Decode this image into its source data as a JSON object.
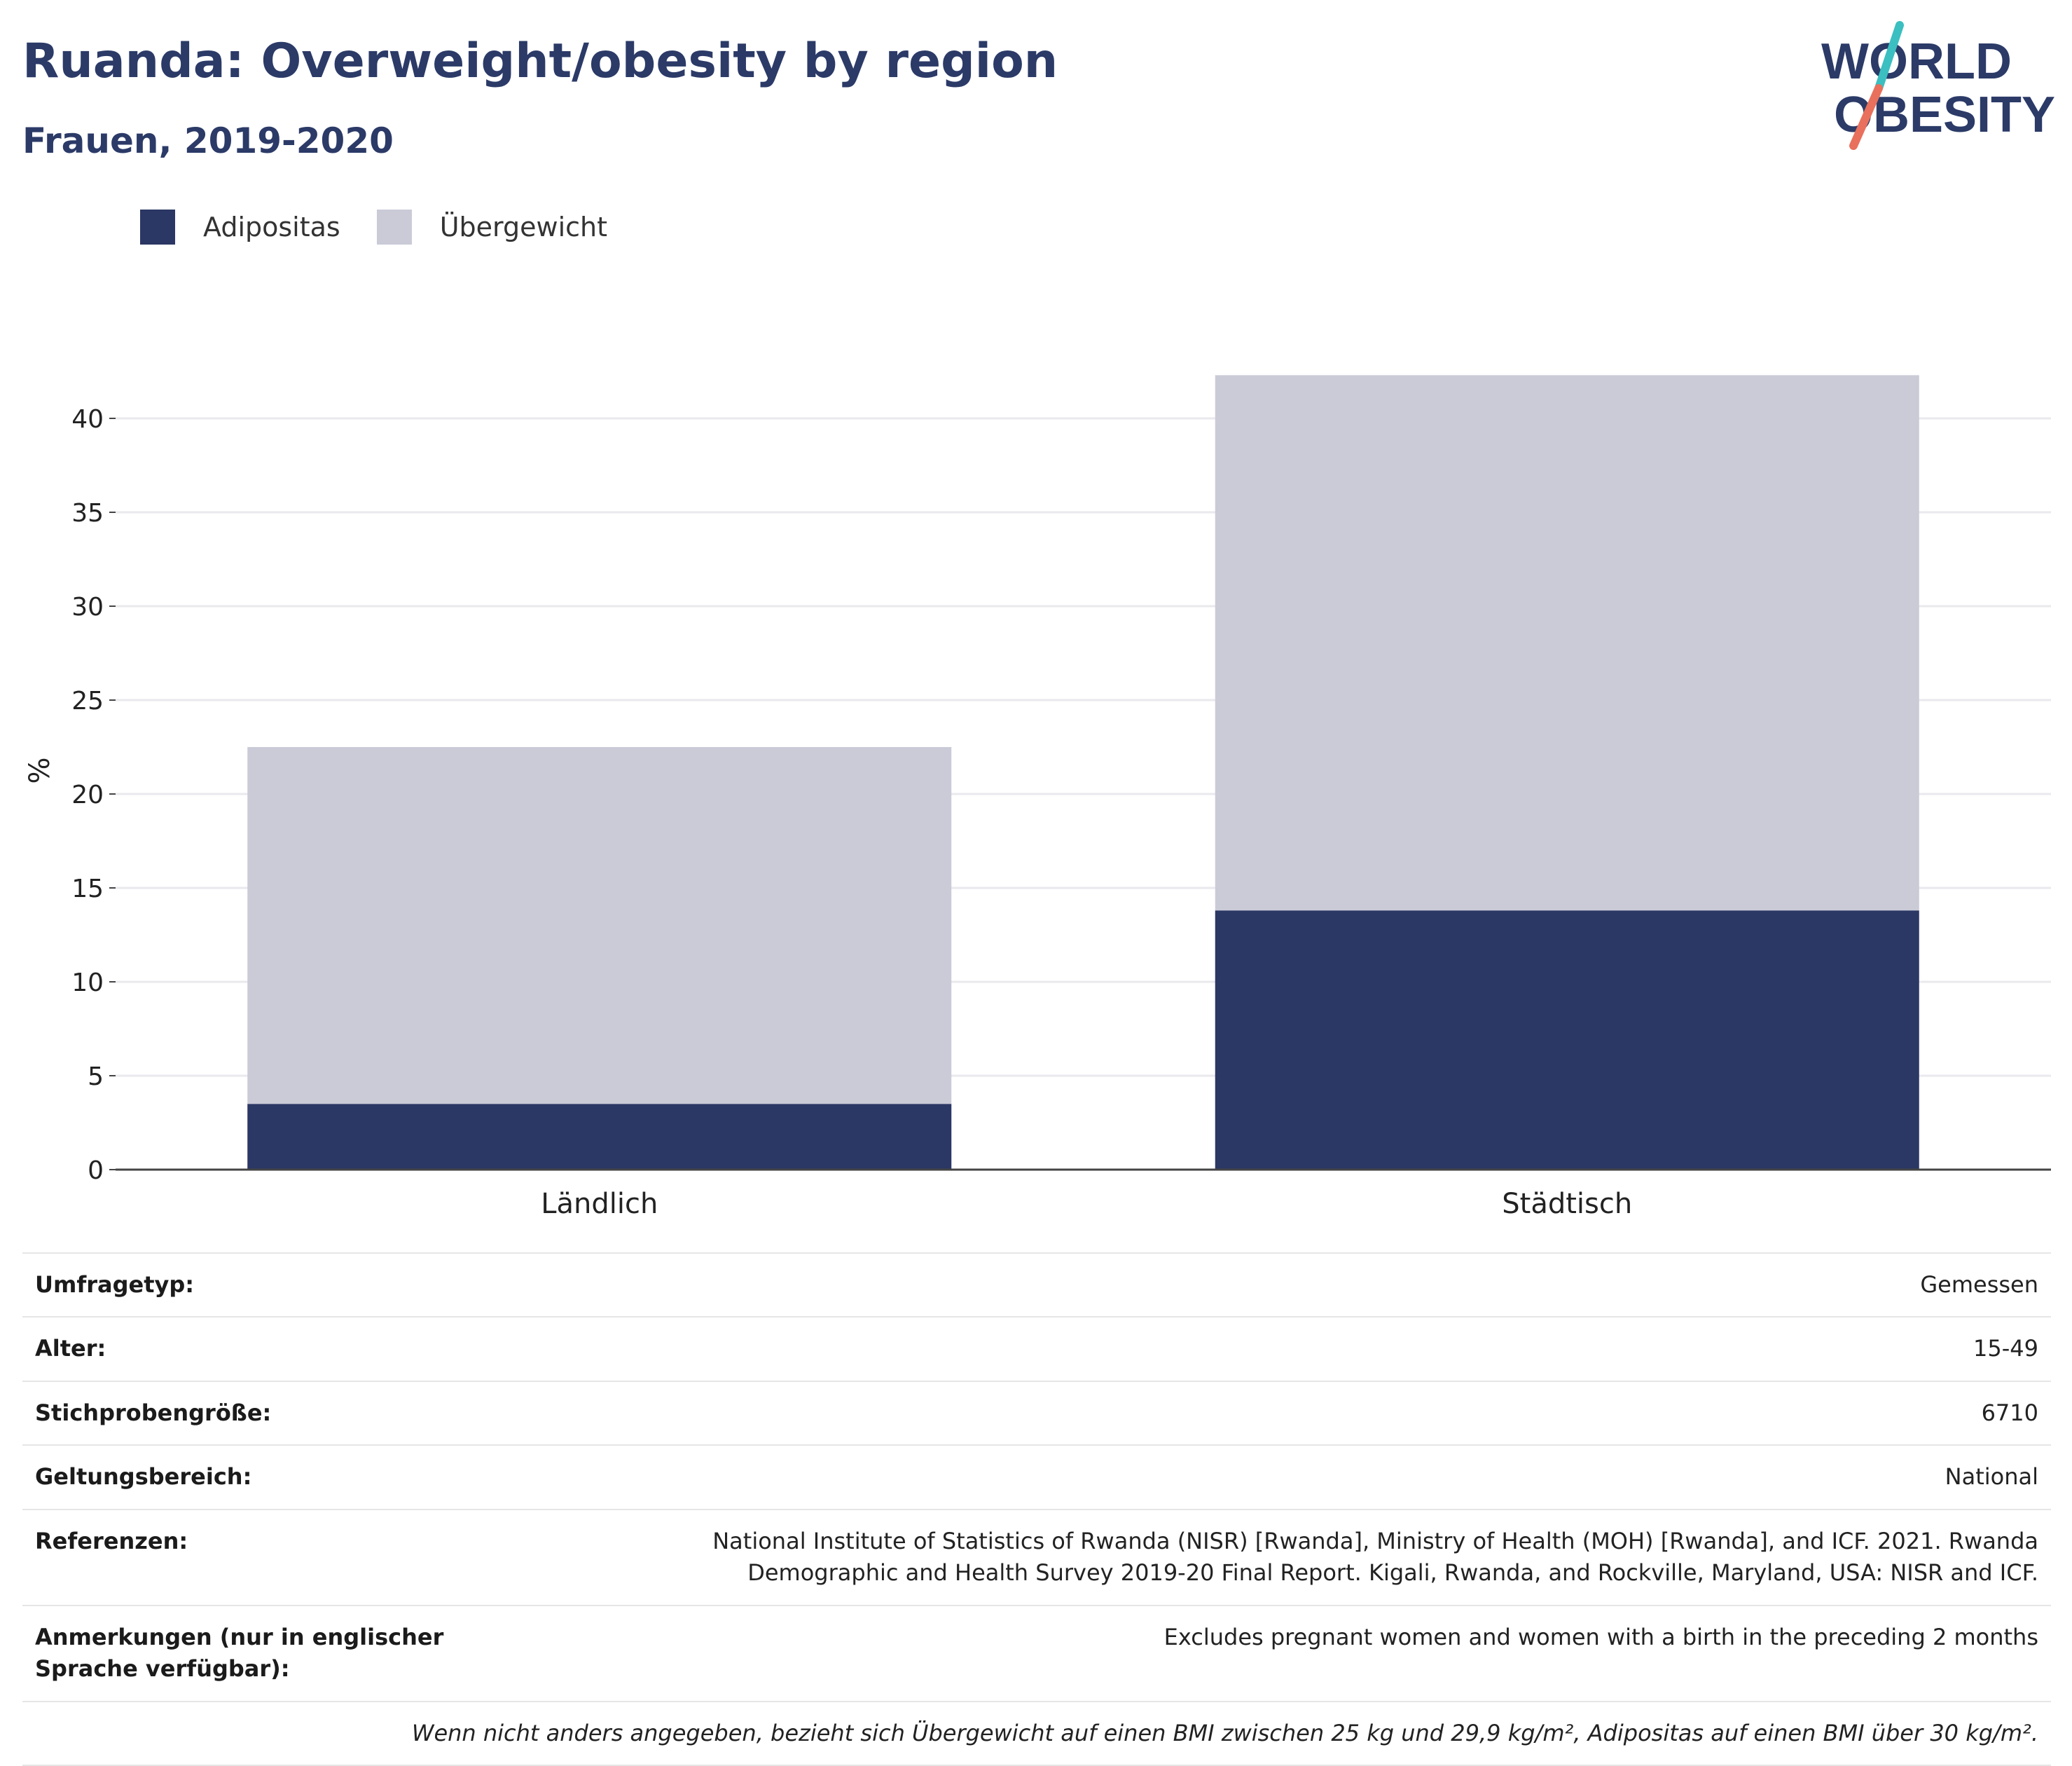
{
  "header": {
    "title": "Ruanda: Overweight/obesity by region",
    "subtitle": "Frauen, 2019-2020"
  },
  "logo": {
    "line1": "WORLD",
    "line2": "OBESITY",
    "colors": {
      "text": "#2b3a67",
      "slash_top": "#3bbfc0",
      "slash_bottom": "#e8705c"
    }
  },
  "legend": [
    {
      "label": "Adipositas",
      "color": "#2b3764"
    },
    {
      "label": "Übergewicht",
      "color": "#cacbd7"
    }
  ],
  "chart_data": {
    "type": "bar",
    "stacked": true,
    "categories": [
      "Ländlich",
      "Städtisch"
    ],
    "series": [
      {
        "name": "Adipositas",
        "values": [
          3.5,
          13.8
        ],
        "color": "#2b3764"
      },
      {
        "name": "Übergewicht",
        "values": [
          19.0,
          28.5
        ],
        "color": "#cacbd7"
      }
    ],
    "ylabel": "%",
    "ylim": [
      0,
      42.5
    ],
    "yticks": [
      0,
      5,
      10,
      15,
      20,
      25,
      30,
      35,
      40
    ],
    "grid": true,
    "legend_position": "top-left"
  },
  "meta": {
    "rows": [
      {
        "key": "Umfragetyp:",
        "value": "Gemessen"
      },
      {
        "key": "Alter:",
        "value": "15-49"
      },
      {
        "key": "Stichprobengröße:",
        "value": "6710"
      },
      {
        "key": "Geltungsbereich:",
        "value": "National"
      },
      {
        "key": "Referenzen:",
        "value": "National Institute of Statistics of Rwanda (NISR) [Rwanda], Ministry of Health (MOH) [Rwanda], and ICF. 2021. Rwanda Demographic and Health Survey 2019-20 Final Report. Kigali, Rwanda, and Rockville, Maryland, USA: NISR and ICF."
      },
      {
        "key": "Anmerkungen (nur in englischer Sprache verfügbar):",
        "value": "Excludes pregnant women and women with a birth in the preceding 2 months"
      }
    ],
    "note": "Wenn nicht anders angegeben, bezieht sich Übergewicht auf einen BMI zwischen 25 kg und 29,9 kg/m², Adipositas auf einen BMI über 30 kg/m²."
  }
}
